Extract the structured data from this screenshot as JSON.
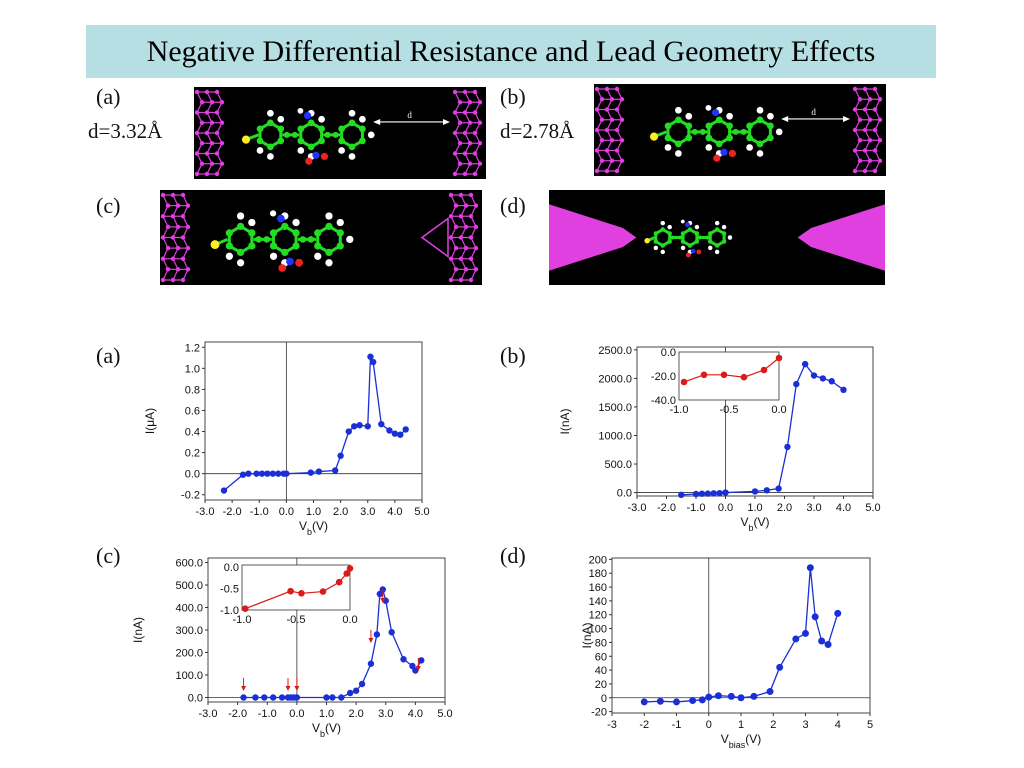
{
  "title": "Negative Differential Resistance and Lead Geometry Effects",
  "structures": {
    "a": {
      "label": "(a)",
      "distance": "d=3.32Å",
      "arrow_label": "d"
    },
    "b": {
      "label": "(b)",
      "distance": "d=2.78Å",
      "arrow_label": "d"
    },
    "c": {
      "label": "(c)"
    },
    "d": {
      "label": "(d)"
    }
  },
  "colors": {
    "lead": "#e040e0",
    "carbon": "#22dd22",
    "hydrogen": "#ffffff",
    "sulfur": "#ffee22",
    "nitrogen": "#2233ff",
    "oxygen": "#ee2222",
    "series_main": "#1a2fd6",
    "series_inset": "#dd1a1a",
    "title_bg": "#b5dfe2"
  },
  "chart_data": [
    {
      "id": "a",
      "panel_label": "(a)",
      "type": "line",
      "xlabel": "V",
      "xlabel_sub": "b",
      "xlabel_unit": "(V)",
      "ylabel": "I(μA)",
      "xlim": [
        -3.0,
        5.0
      ],
      "ylim": [
        -0.25,
        1.25
      ],
      "xticks": [
        "-3.0",
        "-2.0",
        "-1.0",
        "0.0",
        "1.0",
        "2.0",
        "3.0",
        "4.0",
        "5.0"
      ],
      "xtick_values": [
        -3,
        -2,
        -1,
        0,
        1,
        2,
        3,
        4,
        5
      ],
      "yticks": [
        "-0.2",
        "0.0",
        "0.2",
        "0.4",
        "0.6",
        "0.8",
        "1.0",
        "1.2"
      ],
      "ytick_values": [
        -0.2,
        0,
        0.2,
        0.4,
        0.6,
        0.8,
        1.0,
        1.2
      ],
      "series": [
        {
          "x": [
            -2.3,
            -1.6,
            -1.4,
            -1.1,
            -0.9,
            -0.7,
            -0.5,
            -0.3,
            -0.1,
            0,
            0.9,
            1.2,
            1.8,
            2.0,
            2.3,
            2.5,
            2.7,
            3.0,
            3.1,
            3.2,
            3.5,
            3.8,
            4.0,
            4.2,
            4.4
          ],
          "y": [
            -0.16,
            -0.01,
            0.0,
            0.0,
            0.0,
            0.0,
            0.0,
            0.0,
            0.0,
            0.0,
            0.01,
            0.02,
            0.03,
            0.17,
            0.4,
            0.45,
            0.46,
            0.45,
            1.11,
            1.06,
            0.47,
            0.41,
            0.38,
            0.37,
            0.42
          ]
        }
      ]
    },
    {
      "id": "b",
      "panel_label": "(b)",
      "type": "line",
      "xlabel": "V",
      "xlabel_sub": "b",
      "xlabel_unit": "(V)",
      "ylabel": "I(nA)",
      "xlim": [
        -3.0,
        5.0
      ],
      "ylim": [
        -60,
        2550
      ],
      "xticks": [
        "-3.0",
        "-2.0",
        "-1.0",
        "0.0",
        "1.0",
        "2.0",
        "3.0",
        "4.0",
        "5.0"
      ],
      "xtick_values": [
        -3,
        -2,
        -1,
        0,
        1,
        2,
        3,
        4,
        5
      ],
      "yticks": [
        "0.0",
        "500.0",
        "1000.0",
        "1500.0",
        "2000.0",
        "2500.0"
      ],
      "ytick_values": [
        0,
        500,
        1000,
        1500,
        2000,
        2500
      ],
      "series": [
        {
          "x": [
            -1.5,
            -1.0,
            -0.8,
            -0.6,
            -0.4,
            -0.2,
            0,
            1.0,
            1.4,
            1.8,
            2.1,
            2.4,
            2.7,
            3.0,
            3.3,
            3.6,
            4.0
          ],
          "y": [
            -40,
            -25,
            -20,
            -18,
            -14,
            -10,
            0,
            20,
            40,
            70,
            800,
            1900,
            2250,
            2050,
            2000,
            1950,
            1800
          ]
        }
      ],
      "inset": {
        "xlim": [
          -1.0,
          0.0
        ],
        "ylim": [
          -40.0,
          0.0
        ],
        "xticks": [
          "-1.0",
          "-0.5",
          "0.0"
        ],
        "xtick_values": [
          -1,
          -0.5,
          0
        ],
        "yticks": [
          "0.0",
          "-20.0",
          "-40.0"
        ],
        "ytick_values": [
          0,
          -20,
          -40
        ],
        "series": [
          {
            "x": [
              -0.95,
              -0.75,
              -0.55,
              -0.35,
              -0.15,
              0.0
            ],
            "y": [
              -25,
              -19,
              -19,
              -21,
              -15,
              -5
            ]
          }
        ]
      }
    },
    {
      "id": "c",
      "panel_label": "(c)",
      "type": "line",
      "xlabel": "V",
      "xlabel_sub": "b",
      "xlabel_unit": "(V)",
      "ylabel": "I(nA)",
      "xlim": [
        -3.0,
        5.0
      ],
      "ylim": [
        -20,
        620
      ],
      "xticks": [
        "-3.0",
        "-2.0",
        "-1.0",
        "0.0",
        "1.0",
        "2.0",
        "3.0",
        "4.0",
        "5.0"
      ],
      "xtick_values": [
        -3,
        -2,
        -1,
        0,
        1,
        2,
        3,
        4,
        5
      ],
      "yticks": [
        "0.0",
        "100.0",
        "200.0",
        "300.0",
        "400.0",
        "500.0",
        "600.0"
      ],
      "ytick_values": [
        0,
        100,
        200,
        300,
        400,
        500,
        600
      ],
      "series": [
        {
          "x": [
            -1.8,
            -1.4,
            -1.1,
            -0.8,
            -0.5,
            -0.3,
            -0.2,
            -0.1,
            0,
            1.0,
            1.2,
            1.5,
            1.8,
            2.0,
            2.2,
            2.5,
            2.7,
            2.8,
            2.9,
            3.0,
            3.2,
            3.6,
            3.9,
            4.0,
            4.2
          ],
          "y": [
            0,
            0,
            0,
            0,
            0,
            0,
            0,
            0,
            0,
            0,
            0,
            0,
            20,
            30,
            60,
            150,
            280,
            460,
            480,
            430,
            290,
            170,
            140,
            120,
            165
          ]
        }
      ],
      "arrows_x": [
        -1.8,
        -0.3,
        0.0,
        2.5,
        2.9,
        4.1
      ],
      "inset": {
        "xlim": [
          -1.0,
          0.0
        ],
        "ylim": [
          -1.0,
          0.05
        ],
        "xticks": [
          "-1.0",
          "-0.5",
          "0.0"
        ],
        "xtick_values": [
          -1,
          -0.5,
          0
        ],
        "yticks": [
          "0.0",
          "-0.5",
          "-1.0"
        ],
        "ytick_values": [
          0,
          -0.5,
          -1.0
        ],
        "series": [
          {
            "x": [
              -0.97,
              -0.55,
              -0.45,
              -0.25,
              -0.1,
              -0.03,
              0.0
            ],
            "y": [
              -0.97,
              -0.56,
              -0.61,
              -0.57,
              -0.35,
              -0.15,
              -0.03
            ]
          }
        ]
      }
    },
    {
      "id": "d",
      "panel_label": "(d)",
      "type": "line",
      "xlabel": "V",
      "xlabel_sub": "bias",
      "xlabel_unit": "(V)",
      "ylabel": "I(nA)",
      "xlim": [
        -3,
        5
      ],
      "ylim": [
        -22,
        202
      ],
      "xticks": [
        "-3",
        "-2",
        "-1",
        "0",
        "1",
        "2",
        "3",
        "4",
        "5"
      ],
      "xtick_values": [
        -3,
        -2,
        -1,
        0,
        1,
        2,
        3,
        4,
        5
      ],
      "yticks": [
        "-20",
        "0",
        "20",
        "40",
        "60",
        "80",
        "100",
        "120",
        "140",
        "160",
        "180",
        "200"
      ],
      "ytick_values": [
        -20,
        0,
        20,
        40,
        60,
        80,
        100,
        120,
        140,
        160,
        180,
        200
      ],
      "series": [
        {
          "x": [
            -2.0,
            -1.5,
            -1.0,
            -0.5,
            -0.2,
            0.0,
            0.3,
            0.7,
            1.0,
            1.4,
            1.9,
            2.2,
            2.7,
            3.0,
            3.15,
            3.3,
            3.5,
            3.7,
            4.0
          ],
          "y": [
            -6,
            -5,
            -6,
            -4,
            -3,
            1,
            3,
            2,
            0,
            2,
            9,
            44,
            85,
            93,
            188,
            117,
            82,
            77,
            122
          ]
        }
      ]
    }
  ]
}
